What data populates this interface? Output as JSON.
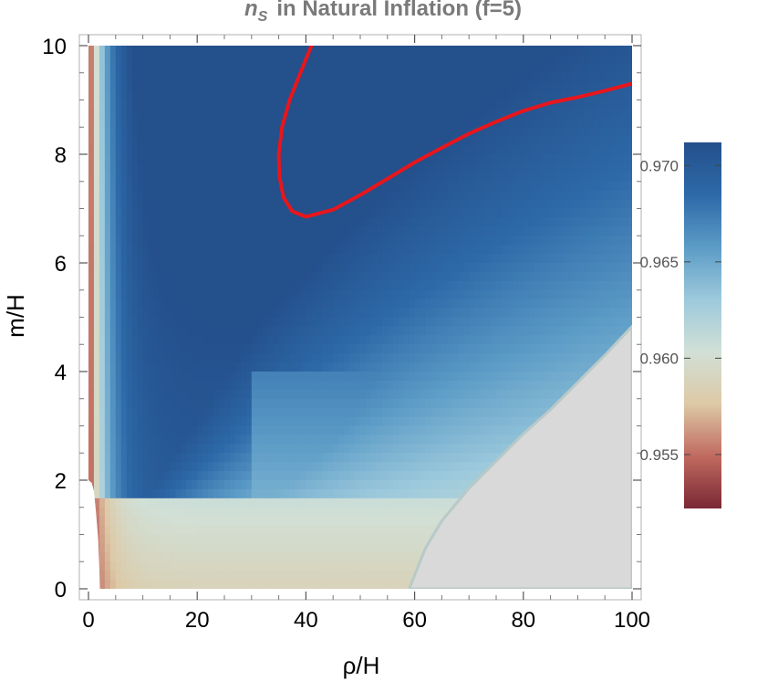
{
  "chart_data": {
    "type": "heatmap",
    "title": {
      "symbol": "n",
      "subscript": "S",
      "text": "in Natural Inflation (f=5)"
    },
    "xlabel": "ρ/H",
    "ylabel": "m/H",
    "xlim": [
      0,
      100
    ],
    "ylim": [
      0,
      10
    ],
    "x_ticks": [
      "0",
      "20",
      "40",
      "60",
      "80",
      "100"
    ],
    "y_ticks": [
      "0",
      "2",
      "4",
      "6",
      "8",
      "10"
    ],
    "x_tick_values": [
      0,
      20,
      40,
      60,
      80,
      100
    ],
    "y_tick_values": [
      0,
      2,
      4,
      6,
      8,
      10
    ],
    "colorbar": {
      "range": [
        0.9522,
        0.9712
      ],
      "ticks": [
        "0.955",
        "0.960",
        "0.965",
        "0.970"
      ],
      "tick_values": [
        0.955,
        0.96,
        0.965,
        0.97
      ],
      "colors": [
        "#7a2835",
        "#c06a5f",
        "#ddc9a6",
        "#d1e0d6",
        "#9cc9dc",
        "#5b9bc6",
        "#2d69a8",
        "#24508c"
      ]
    },
    "contour": {
      "color": "#e8161c",
      "points": [
        [
          41,
          10
        ],
        [
          39,
          9.5
        ],
        [
          37,
          9.0
        ],
        [
          35.6,
          8.5
        ],
        [
          35.0,
          8.0
        ],
        [
          35.1,
          7.6
        ],
        [
          35.9,
          7.2
        ],
        [
          37.5,
          6.95
        ],
        [
          40,
          6.85
        ],
        [
          45,
          6.98
        ],
        [
          50,
          7.25
        ],
        [
          55,
          7.55
        ],
        [
          60,
          7.85
        ],
        [
          65,
          8.12
        ],
        [
          70,
          8.38
        ],
        [
          75,
          8.6
        ],
        [
          80,
          8.8
        ],
        [
          85,
          8.95
        ],
        [
          90,
          9.05
        ],
        [
          95,
          9.17
        ],
        [
          100,
          9.3
        ]
      ]
    },
    "excluded_region": {
      "color": "#d9d9d9",
      "boundary": [
        [
          59,
          0
        ],
        [
          60,
          0.25
        ],
        [
          62,
          0.75
        ],
        [
          65,
          1.25
        ],
        [
          70,
          1.85
        ],
        [
          75,
          2.35
        ],
        [
          80,
          2.85
        ],
        [
          85,
          3.3
        ],
        [
          90,
          3.8
        ],
        [
          95,
          4.3
        ],
        [
          100,
          4.83
        ]
      ]
    },
    "left_exclusion_boundary": [
      [
        2.1,
        0
      ],
      [
        2.0,
        0.4
      ],
      [
        1.8,
        0.9
      ],
      [
        1.4,
        1.4
      ],
      [
        1.0,
        1.8
      ],
      [
        0.6,
        1.95
      ],
      [
        0,
        2.0
      ]
    ],
    "grid": false
  }
}
